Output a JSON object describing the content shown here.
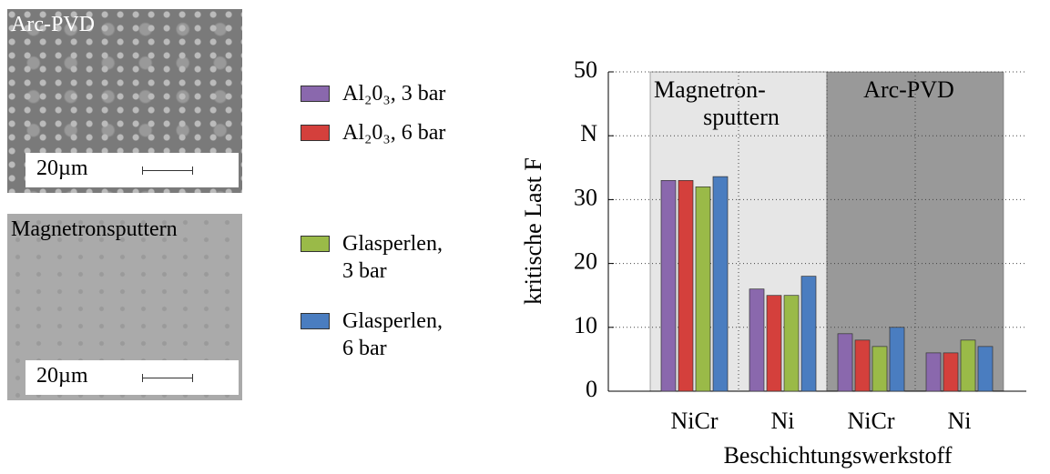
{
  "images": [
    {
      "label": "Arc-PVD",
      "scale": "20µm"
    },
    {
      "label": "Magnetronsputtern",
      "scale": "20µm"
    }
  ],
  "chart_data": {
    "type": "bar",
    "ylabel": "kritische Last F",
    "xlabel": "Beschichtungswerkstoff",
    "categories": [
      "NiCr",
      "Ni",
      "NiCr",
      "Ni"
    ],
    "regions": [
      {
        "label": "Magnetron-\nsputtern",
        "color": "#e6e6e6"
      },
      {
        "label": "Arc-PVD",
        "color": "#999999"
      }
    ],
    "series": [
      {
        "name": "Al₂0₃, 3 bar",
        "color": "#8a68ad",
        "values": [
          33,
          16,
          9,
          6
        ]
      },
      {
        "name": "Al₂0₃, 6 bar",
        "color": "#d4403c",
        "values": [
          33,
          15,
          8,
          6
        ]
      },
      {
        "name": "Glasperlen,\n3 bar",
        "color": "#9aba48",
        "values": [
          32,
          15,
          7,
          8
        ]
      },
      {
        "name": "Glasperlen,\n6 bar",
        "color": "#4a7dc0",
        "values": [
          33.6,
          18,
          10,
          7
        ]
      }
    ],
    "ylim": [
      0,
      50
    ],
    "yticks": [
      0,
      10,
      20,
      30,
      {
        "value": 40,
        "label": "N"
      },
      50
    ],
    "grid": true
  }
}
